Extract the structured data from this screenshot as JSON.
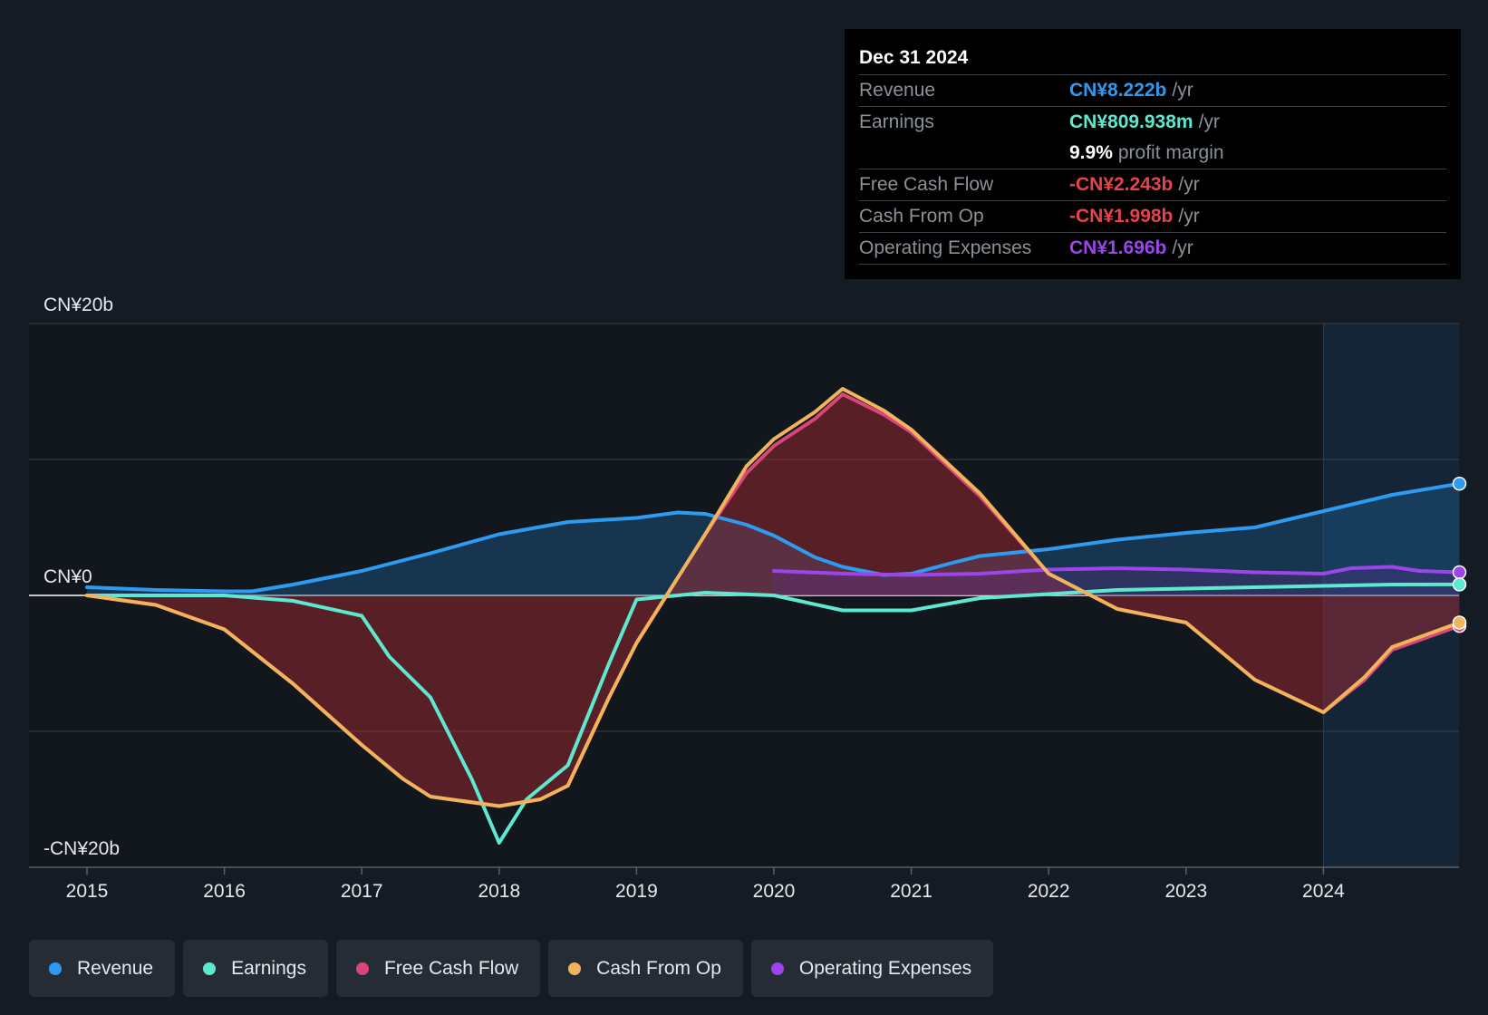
{
  "chart_data": {
    "type": "area",
    "y_labels": {
      "top": "CN¥20b",
      "zero": "CN¥0",
      "bottom": "-CN¥20b"
    },
    "ylim": [
      -20,
      20
    ],
    "x_ticks": [
      "2015",
      "2016",
      "2017",
      "2018",
      "2019",
      "2020",
      "2021",
      "2022",
      "2023",
      "2024"
    ],
    "xlim": [
      2014.58,
      2024.99
    ],
    "forecast_start": 2024.0,
    "series": [
      {
        "name": "Revenue",
        "color": "#2e9bf0",
        "fill": true,
        "points": [
          [
            2015.0,
            0.6
          ],
          [
            2015.5,
            0.4
          ],
          [
            2016.0,
            0.3
          ],
          [
            2016.2,
            0.3
          ],
          [
            2016.5,
            0.8
          ],
          [
            2017.0,
            1.8
          ],
          [
            2017.5,
            3.1
          ],
          [
            2018.0,
            4.5
          ],
          [
            2018.5,
            5.4
          ],
          [
            2019.0,
            5.7
          ],
          [
            2019.3,
            6.1
          ],
          [
            2019.5,
            6.0
          ],
          [
            2019.8,
            5.2
          ],
          [
            2020.0,
            4.4
          ],
          [
            2020.3,
            2.8
          ],
          [
            2020.5,
            2.1
          ],
          [
            2020.8,
            1.5
          ],
          [
            2021.0,
            1.6
          ],
          [
            2021.3,
            2.4
          ],
          [
            2021.5,
            2.9
          ],
          [
            2022.0,
            3.4
          ],
          [
            2022.5,
            4.1
          ],
          [
            2023.0,
            4.6
          ],
          [
            2023.5,
            5.0
          ],
          [
            2024.0,
            6.2
          ],
          [
            2024.5,
            7.4
          ],
          [
            2024.99,
            8.22
          ]
        ]
      },
      {
        "name": "Earnings",
        "color": "#5ee8cf",
        "fill": false,
        "points": [
          [
            2015.0,
            0.0
          ],
          [
            2016.0,
            0.0
          ],
          [
            2016.5,
            -0.4
          ],
          [
            2017.0,
            -1.5
          ],
          [
            2017.2,
            -4.5
          ],
          [
            2017.5,
            -7.5
          ],
          [
            2017.8,
            -13.5
          ],
          [
            2018.0,
            -18.2
          ],
          [
            2018.2,
            -15.0
          ],
          [
            2018.5,
            -12.5
          ],
          [
            2018.8,
            -5.0
          ],
          [
            2019.0,
            -0.3
          ],
          [
            2019.5,
            0.2
          ],
          [
            2020.0,
            0.0
          ],
          [
            2020.5,
            -1.1
          ],
          [
            2021.0,
            -1.1
          ],
          [
            2021.5,
            -0.2
          ],
          [
            2022.0,
            0.1
          ],
          [
            2022.5,
            0.4
          ],
          [
            2023.0,
            0.5
          ],
          [
            2023.5,
            0.6
          ],
          [
            2024.0,
            0.7
          ],
          [
            2024.5,
            0.8
          ],
          [
            2024.99,
            0.81
          ]
        ]
      },
      {
        "name": "Free Cash Flow",
        "color": "#d9477a",
        "fill": true,
        "points": [
          [
            2015.0,
            0.0
          ],
          [
            2015.5,
            -0.7
          ],
          [
            2016.0,
            -2.5
          ],
          [
            2016.5,
            -6.5
          ],
          [
            2017.0,
            -11.0
          ],
          [
            2017.3,
            -13.5
          ],
          [
            2017.5,
            -14.8
          ],
          [
            2018.0,
            -15.5
          ],
          [
            2018.3,
            -15.0
          ],
          [
            2018.5,
            -14.0
          ],
          [
            2018.8,
            -7.5
          ],
          [
            2019.0,
            -3.5
          ],
          [
            2019.5,
            4.5
          ],
          [
            2019.8,
            9.0
          ],
          [
            2020.0,
            11.0
          ],
          [
            2020.3,
            13.0
          ],
          [
            2020.5,
            14.8
          ],
          [
            2020.8,
            13.3
          ],
          [
            2021.0,
            12.0
          ],
          [
            2021.5,
            7.3
          ],
          [
            2022.0,
            1.6
          ],
          [
            2022.5,
            -1.0
          ],
          [
            2023.0,
            -2.0
          ],
          [
            2023.5,
            -6.2
          ],
          [
            2024.0,
            -8.6
          ],
          [
            2024.3,
            -6.2
          ],
          [
            2024.5,
            -4.0
          ],
          [
            2024.99,
            -2.24
          ]
        ]
      },
      {
        "name": "Cash From Op",
        "color": "#f2b45a",
        "fill": false,
        "points": [
          [
            2015.0,
            0.0
          ],
          [
            2015.5,
            -0.7
          ],
          [
            2016.0,
            -2.5
          ],
          [
            2016.5,
            -6.5
          ],
          [
            2017.0,
            -11.0
          ],
          [
            2017.3,
            -13.5
          ],
          [
            2017.5,
            -14.8
          ],
          [
            2018.0,
            -15.5
          ],
          [
            2018.3,
            -15.0
          ],
          [
            2018.5,
            -14.0
          ],
          [
            2018.8,
            -7.5
          ],
          [
            2019.0,
            -3.5
          ],
          [
            2019.5,
            4.5
          ],
          [
            2019.8,
            9.5
          ],
          [
            2020.0,
            11.5
          ],
          [
            2020.3,
            13.5
          ],
          [
            2020.5,
            15.2
          ],
          [
            2020.8,
            13.6
          ],
          [
            2021.0,
            12.2
          ],
          [
            2021.5,
            7.5
          ],
          [
            2022.0,
            1.6
          ],
          [
            2022.5,
            -1.0
          ],
          [
            2023.0,
            -2.0
          ],
          [
            2023.5,
            -6.2
          ],
          [
            2024.0,
            -8.6
          ],
          [
            2024.3,
            -6.0
          ],
          [
            2024.5,
            -3.8
          ],
          [
            2024.99,
            -2.0
          ]
        ]
      },
      {
        "name": "Operating Expenses",
        "color": "#9b45ea",
        "fill": true,
        "points": [
          [
            2020.0,
            1.8
          ],
          [
            2020.5,
            1.6
          ],
          [
            2021.0,
            1.5
          ],
          [
            2021.5,
            1.6
          ],
          [
            2022.0,
            1.9
          ],
          [
            2022.5,
            2.0
          ],
          [
            2023.0,
            1.9
          ],
          [
            2023.5,
            1.7
          ],
          [
            2024.0,
            1.6
          ],
          [
            2024.2,
            2.0
          ],
          [
            2024.5,
            2.1
          ],
          [
            2024.7,
            1.8
          ],
          [
            2024.99,
            1.7
          ]
        ]
      }
    ]
  },
  "tooltip": {
    "date": "Dec 31 2024",
    "rows": [
      {
        "label": "Revenue",
        "value": "CN¥8.222b",
        "unit": "/yr",
        "color": "#2e9bf0"
      },
      {
        "label": "Earnings",
        "value": "CN¥809.938m",
        "unit": "/yr",
        "color": "#5ee8cf"
      },
      {
        "label": "",
        "value": "9.9%",
        "unit": "profit margin",
        "color": "#ffffff"
      },
      {
        "label": "Free Cash Flow",
        "value": "-CN¥2.243b",
        "unit": "/yr",
        "color": "#e8434a"
      },
      {
        "label": "Cash From Op",
        "value": "-CN¥1.998b",
        "unit": "/yr",
        "color": "#e8434a"
      },
      {
        "label": "Operating Expenses",
        "value": "CN¥1.696b",
        "unit": "/yr",
        "color": "#9b45ea"
      }
    ]
  },
  "legend": [
    {
      "label": "Revenue",
      "color": "#2e9bf0"
    },
    {
      "label": "Earnings",
      "color": "#5ee8cf"
    },
    {
      "label": "Free Cash Flow",
      "color": "#d9477a"
    },
    {
      "label": "Cash From Op",
      "color": "#f2b45a"
    },
    {
      "label": "Operating Expenses",
      "color": "#9b45ea"
    }
  ]
}
